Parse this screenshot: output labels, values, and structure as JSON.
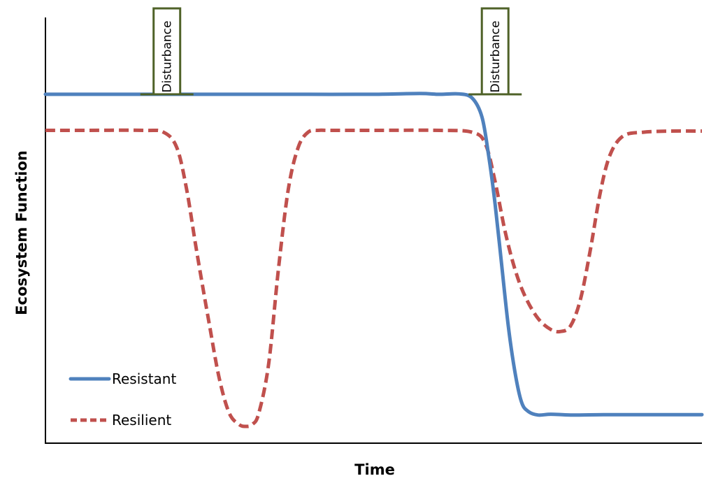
{
  "chart_data": {
    "type": "line",
    "title": "",
    "xlabel": "Time",
    "ylabel": "Ecosystem Function",
    "xlim": [
      0,
      100
    ],
    "ylim": [
      0,
      100
    ],
    "grid": false,
    "legend_position": "bottom-left",
    "colors": {
      "resistant": "#4f81bd",
      "resilient": "#c0504d",
      "arrow_outline": "#4f6228"
    },
    "series": [
      {
        "name": "Resistant",
        "style": "solid",
        "x": [
          0,
          10,
          20,
          30,
          40,
          50,
          57,
          60,
          63,
          65,
          66.5,
          67.5,
          68.5,
          69.5,
          70.5,
          71.5,
          72.5,
          73.5,
          75,
          77,
          80,
          85,
          90,
          95,
          100
        ],
        "y": [
          91,
          91,
          91,
          91,
          91,
          91,
          91.2,
          91,
          91.1,
          90,
          85,
          75,
          62,
          46,
          30,
          18,
          10,
          7.5,
          6.5,
          6.7,
          6.5,
          6.6,
          6.6,
          6.6,
          6.6
        ]
      },
      {
        "name": "Resilient",
        "style": "dashed",
        "x": [
          0,
          5,
          15,
          18,
          20,
          21.5,
          23,
          25,
          26.5,
          28,
          29.5,
          30.5,
          31.5,
          32.5,
          34,
          35.5,
          37,
          38.5,
          40,
          41.5,
          43,
          45,
          50,
          60,
          65,
          67,
          68.5,
          70,
          71.5,
          73,
          75,
          77,
          78.5,
          80,
          81.5,
          83,
          84.5,
          86,
          88,
          91,
          95,
          100
        ],
        "y": [
          81.5,
          81.5,
          81.5,
          81,
          77,
          66,
          50,
          30,
          16,
          7,
          4,
          3.5,
          4,
          7,
          20,
          45,
          66,
          77,
          81,
          81.5,
          81.5,
          81.5,
          81.5,
          81.5,
          81,
          78,
          68,
          55,
          45,
          38,
          32,
          29,
          28.5,
          30,
          37,
          50,
          65,
          75,
          80,
          81,
          81.3,
          81.3
        ]
      }
    ],
    "annotations": [
      {
        "text": "Disturbance",
        "x": 18.5
      },
      {
        "text": "Disturbance",
        "x": 68.5
      }
    ],
    "legend": [
      {
        "label": "Resistant",
        "style": "solid"
      },
      {
        "label": "Resilient",
        "style": "dashed"
      }
    ]
  }
}
